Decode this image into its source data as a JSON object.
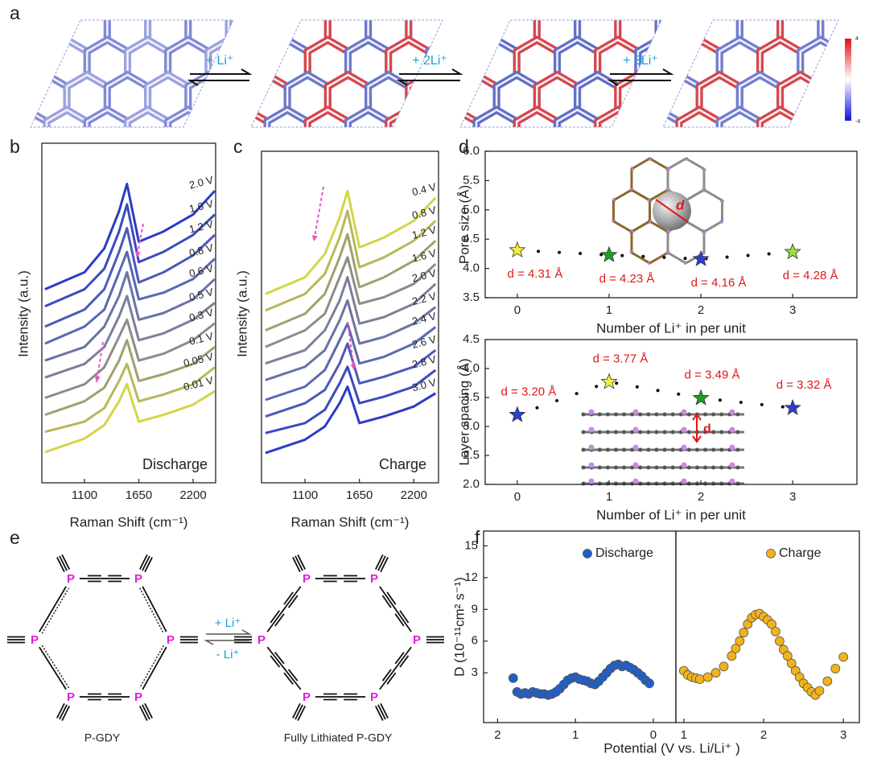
{
  "panel_labels": [
    "a",
    "b",
    "c",
    "d",
    "e",
    "f"
  ],
  "panel_a": {
    "steps": [
      "+ Li⁺",
      "+ 2Li⁺",
      "+ 3Li⁺"
    ],
    "colorbar_labels": [
      "4",
      "-4"
    ]
  },
  "panel_d": {
    "inset_labels": [
      "d",
      "d"
    ]
  },
  "panel_e": {
    "left_atoms": [
      "P",
      "P",
      "P",
      "P",
      "P",
      "P"
    ],
    "right_atoms": [
      "P",
      "P",
      "P",
      "P",
      "P",
      "P"
    ],
    "forward": "+ Li⁺",
    "backward": "- Li⁺",
    "left_caption": "P-GDY",
    "right_caption": "Fully Lithiated P-GDY"
  },
  "chart_data": [
    {
      "type": "line",
      "ylabel": "Intensity (a.u.)",
      "xlabel": "Raman Shift (cm⁻¹)",
      "annotation": "Discharge",
      "x": [
        700,
        1100,
        1300,
        1450,
        1530,
        1650,
        1900,
        2200,
        2420
      ],
      "xlim": [
        668,
        2428
      ],
      "xticks": [
        1100,
        1650,
        2200
      ],
      "ylim": [
        0,
        10
      ],
      "series": [
        {
          "name": "2.0 V",
          "color": "#2b3cc4",
          "values": [
            5.7,
            6.2,
            6.9,
            8.0,
            8.8,
            7.1,
            7.4,
            7.9,
            8.6
          ]
        },
        {
          "name": "1.6 V",
          "color": "#3a4bc0",
          "values": [
            5.2,
            5.7,
            6.3,
            7.4,
            8.2,
            6.5,
            6.8,
            7.3,
            7.9
          ]
        },
        {
          "name": "1.2 V",
          "color": "#4a5ab8",
          "values": [
            4.6,
            5.1,
            5.7,
            6.8,
            7.5,
            5.9,
            6.2,
            6.7,
            7.3
          ]
        },
        {
          "name": "0.8 V",
          "color": "#5a68b0",
          "values": [
            4.1,
            4.6,
            5.1,
            6.2,
            6.8,
            5.4,
            5.6,
            6.0,
            6.6
          ]
        },
        {
          "name": "0.6 V",
          "color": "#6a74a4",
          "values": [
            3.6,
            4.0,
            4.6,
            5.5,
            6.2,
            4.8,
            5.0,
            5.4,
            6.0
          ]
        },
        {
          "name": "0.5 V",
          "color": "#7b8098",
          "values": [
            3.1,
            3.5,
            4.0,
            4.9,
            5.5,
            4.2,
            4.4,
            4.8,
            5.3
          ]
        },
        {
          "name": "0.3 V",
          "color": "#8c8c88",
          "values": [
            2.5,
            2.9,
            3.4,
            4.3,
            4.8,
            3.6,
            3.8,
            4.2,
            4.7
          ]
        },
        {
          "name": "0.1 V",
          "color": "#a0a070",
          "values": [
            2.0,
            2.4,
            2.8,
            3.6,
            4.2,
            3.0,
            3.2,
            3.5,
            4.0
          ]
        },
        {
          "name": "0.05 V",
          "color": "#b8b858",
          "values": [
            1.5,
            1.8,
            2.2,
            3.0,
            3.5,
            2.4,
            2.6,
            2.9,
            3.4
          ]
        },
        {
          "name": "0.01 V",
          "color": "#d4d44a",
          "values": [
            0.9,
            1.3,
            1.7,
            2.4,
            2.9,
            1.8,
            2.0,
            2.3,
            2.7
          ]
        }
      ]
    },
    {
      "type": "line",
      "ylabel": "Intensity (a.u.)",
      "xlabel": "Raman Shift (cm⁻¹)",
      "annotation": "Charge",
      "x": [
        700,
        1100,
        1300,
        1450,
        1530,
        1650,
        1900,
        2200,
        2420
      ],
      "xlim": [
        660,
        2450
      ],
      "xticks": [
        1100,
        1650,
        2200
      ],
      "ylim": [
        0,
        10
      ],
      "series": [
        {
          "name": "0.4 V",
          "color": "#d4d44a",
          "values": [
            5.7,
            6.2,
            6.9,
            8.0,
            8.8,
            7.1,
            7.4,
            7.9,
            8.6
          ]
        },
        {
          "name": "0.8 V",
          "color": "#b8b858",
          "values": [
            5.2,
            5.7,
            6.3,
            7.4,
            8.2,
            6.5,
            6.8,
            7.3,
            7.9
          ]
        },
        {
          "name": "1.2 V",
          "color": "#a0a070",
          "values": [
            4.6,
            5.1,
            5.7,
            6.8,
            7.5,
            5.9,
            6.2,
            6.7,
            7.3
          ]
        },
        {
          "name": "1.6 V",
          "color": "#8c8c88",
          "values": [
            4.1,
            4.6,
            5.1,
            6.2,
            6.8,
            5.4,
            5.6,
            6.0,
            6.6
          ]
        },
        {
          "name": "2.0 V",
          "color": "#7b8098",
          "values": [
            3.6,
            4.0,
            4.6,
            5.5,
            6.2,
            4.8,
            5.0,
            5.4,
            6.0
          ]
        },
        {
          "name": "2.2 V",
          "color": "#6a74a4",
          "values": [
            3.1,
            3.5,
            4.0,
            4.9,
            5.5,
            4.2,
            4.4,
            4.8,
            5.3
          ]
        },
        {
          "name": "2.4 V",
          "color": "#5a68b0",
          "values": [
            2.5,
            2.9,
            3.4,
            4.3,
            4.8,
            3.6,
            3.8,
            4.2,
            4.7
          ]
        },
        {
          "name": "2.6 V",
          "color": "#4a5ab8",
          "values": [
            2.0,
            2.4,
            2.8,
            3.6,
            4.2,
            3.0,
            3.2,
            3.5,
            4.0
          ]
        },
        {
          "name": "2.8 V",
          "color": "#3a4bc0",
          "values": [
            1.5,
            1.8,
            2.2,
            3.0,
            3.5,
            2.4,
            2.6,
            2.9,
            3.4
          ]
        },
        {
          "name": "3.0 V",
          "color": "#2b3cc4",
          "values": [
            0.9,
            1.3,
            1.7,
            2.4,
            2.9,
            1.8,
            2.0,
            2.3,
            2.7
          ]
        }
      ]
    },
    {
      "type": "scatter",
      "marker": "star",
      "xlabel": "Number of Li⁺ in per unit",
      "ylabel": "Pore size (Å)",
      "x": [
        0,
        1,
        2,
        3
      ],
      "values": [
        4.31,
        4.23,
        4.16,
        4.28
      ],
      "value_labels": [
        "d = 4.31 Å",
        "d = 4.23 Å",
        "d = 4.16 Å",
        "d = 4.28 Å"
      ],
      "colors": [
        "#f2f03c",
        "#1ea01e",
        "#2a3fd0",
        "#9ee03c"
      ],
      "xlim": [
        -0.35,
        3.7
      ],
      "xticks": [
        0,
        1,
        2,
        3
      ],
      "ylim": [
        3.5,
        6.0
      ],
      "yticks": [
        3.5,
        {
          "value": 4,
          "label": "4.0"
        },
        4.5,
        {
          "value": 5,
          "label": "5.0"
        },
        5.5,
        {
          "value": 6,
          "label": "6.0"
        }
      ]
    },
    {
      "type": "scatter",
      "marker": "star",
      "xlabel": "Number of Li⁺ in per unit",
      "ylabel": "Layer spacing (Å)",
      "x": [
        0,
        1,
        2,
        3
      ],
      "values": [
        3.2,
        3.77,
        3.49,
        3.32
      ],
      "value_labels": [
        "d = 3.20 Å",
        "d = 3.77 Å",
        "d = 3.49 Å",
        "d = 3.32 Å"
      ],
      "colors": [
        "#2a3fd0",
        "#f2f03c",
        "#1ea01e",
        "#2a3fd0"
      ],
      "xlim": [
        -0.35,
        3.7
      ],
      "xticks": [
        0,
        1,
        2,
        3
      ],
      "ylim": [
        2.0,
        4.5
      ],
      "yticks": [
        {
          "value": 2,
          "label": "2.0"
        },
        2.5,
        {
          "value": 3,
          "label": "3.0"
        },
        3.5,
        {
          "value": 4,
          "label": "4.0"
        },
        4.5
      ]
    },
    {
      "type": "scatter",
      "marker": "circle",
      "xlabel": "Potential (V vs. Li/Li⁺ )",
      "ylabel": "D (10⁻¹¹cm² s⁻¹)",
      "xlim": [
        2.18,
        -0.29
      ],
      "xticks": [
        2,
        1,
        0
      ],
      "ylim": [
        -1.7,
        16.4
      ],
      "yticks": [
        3,
        6,
        9,
        12,
        15
      ],
      "legend": "upper right",
      "series": [
        {
          "name": "Discharge",
          "color": "#1f5fc8",
          "x": [
            1.8,
            1.75,
            1.7,
            1.65,
            1.6,
            1.55,
            1.5,
            1.45,
            1.4,
            1.35,
            1.3,
            1.25,
            1.2,
            1.15,
            1.1,
            1.05,
            1.0,
            0.95,
            0.9,
            0.85,
            0.8,
            0.75,
            0.7,
            0.65,
            0.6,
            0.55,
            0.5,
            0.45,
            0.4,
            0.35,
            0.3,
            0.25,
            0.2,
            0.15,
            0.1,
            0.05
          ],
          "values": [
            2.5,
            1.2,
            1.0,
            1.1,
            1.0,
            1.2,
            1.1,
            1.0,
            1.0,
            0.9,
            1.0,
            1.2,
            1.5,
            1.9,
            2.3,
            2.5,
            2.6,
            2.4,
            2.3,
            2.2,
            2.0,
            1.9,
            2.2,
            2.6,
            3.0,
            3.4,
            3.7,
            3.8,
            3.6,
            3.7,
            3.5,
            3.3,
            3.0,
            2.7,
            2.3,
            2.0
          ]
        }
      ]
    },
    {
      "type": "scatter",
      "marker": "circle",
      "xlim": [
        0.9,
        3.2
      ],
      "xticks": [
        1,
        2,
        3
      ],
      "ylim": [
        -1.7,
        16.4
      ],
      "legend": "upper right",
      "series": [
        {
          "name": "Charge",
          "color": "#f2b319",
          "x": [
            1.0,
            1.05,
            1.1,
            1.15,
            1.2,
            1.3,
            1.4,
            1.5,
            1.6,
            1.65,
            1.7,
            1.75,
            1.8,
            1.85,
            1.9,
            1.95,
            2.0,
            2.05,
            2.1,
            2.15,
            2.2,
            2.25,
            2.3,
            2.35,
            2.4,
            2.45,
            2.5,
            2.55,
            2.6,
            2.65,
            2.7,
            2.8,
            2.9,
            3.0
          ],
          "values": [
            3.2,
            2.8,
            2.6,
            2.5,
            2.4,
            2.6,
            3.0,
            3.6,
            4.6,
            5.3,
            6.0,
            6.8,
            7.6,
            8.2,
            8.5,
            8.6,
            8.3,
            8.0,
            7.6,
            6.9,
            6.0,
            5.2,
            4.6,
            3.9,
            3.2,
            2.6,
            2.0,
            1.6,
            1.2,
            0.9,
            1.3,
            2.2,
            3.4,
            4.5
          ]
        }
      ]
    }
  ]
}
